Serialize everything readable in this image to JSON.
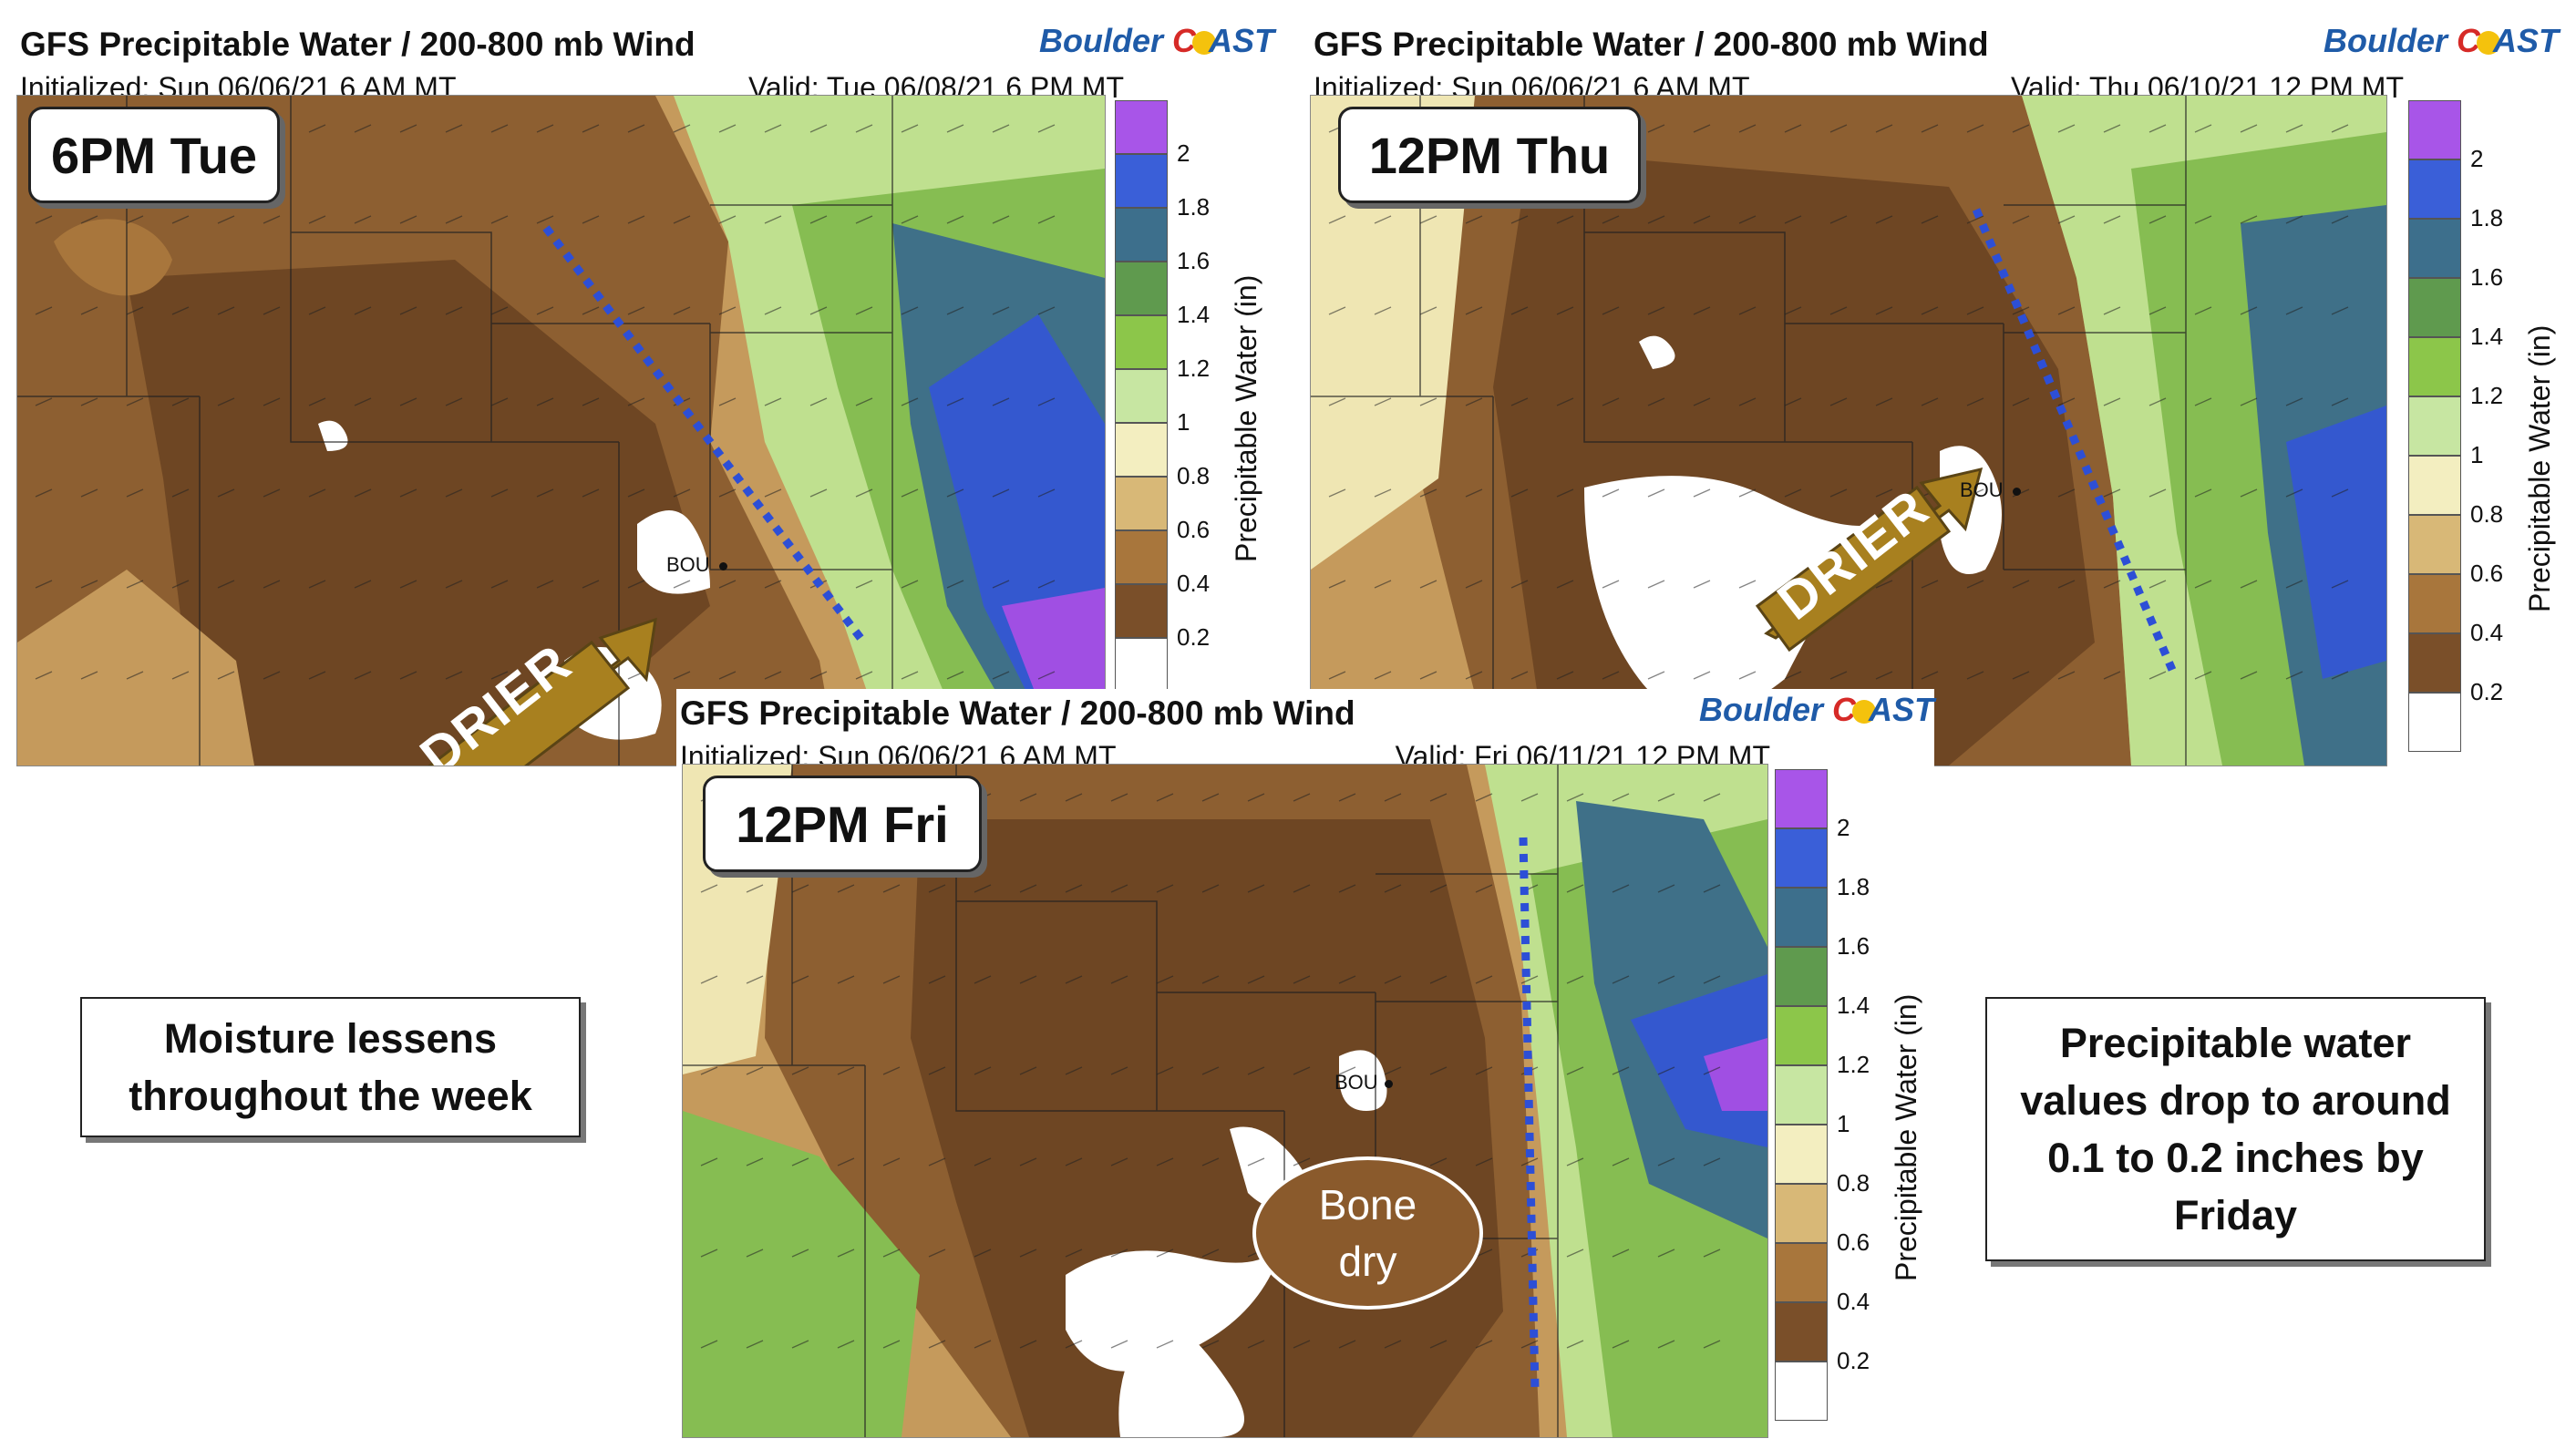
{
  "panels": {
    "tue": {
      "title": "GFS Precipitable Water / 200-800 mb Wind",
      "initialized": "Initialized: Sun 06/06/21 6 AM MT",
      "valid": "Valid: Tue 06/08/21 6 PM MT",
      "time_label": "6PM Tue",
      "station": "BOU",
      "arrow_label": "DRIER"
    },
    "thu": {
      "title": "GFS Precipitable Water / 200-800 mb Wind",
      "initialized": "Initialized: Sun 06/06/21 6 AM MT",
      "valid": "Valid: Thu 06/10/21 12 PM MT",
      "time_label": "12PM Thu",
      "station": "BOU",
      "arrow_label": "DRIER"
    },
    "fri": {
      "title": "GFS Precipitable Water / 200-800 mb Wind",
      "initialized": "Initialized: Sun 06/06/21 6 AM MT",
      "valid": "Valid: Fri 06/11/21 12 PM MT",
      "time_label": "12PM Fri",
      "station": "BOU",
      "bone_dry_line1": "Bone",
      "bone_dry_line2": "dry"
    }
  },
  "logo": {
    "part1": "Boulder",
    "part2": "AST"
  },
  "colorbar": {
    "label": "Precipitable Water (in)",
    "ticks": [
      "2",
      "1.8",
      "1.6",
      "1.4",
      "1.2",
      "1",
      "0.8",
      "0.6",
      "0.4",
      "0.2"
    ],
    "colors": [
      "#a855e8",
      "#3a5fd8",
      "#3d6f8c",
      "#5f9a4e",
      "#8cc64a",
      "#c7e6a2",
      "#f3eec0",
      "#d8b877",
      "#a8763c",
      "#7a4f29",
      "#ffffff"
    ]
  },
  "notes": {
    "left_line1": "Moisture lessens",
    "left_line2": "throughout the week",
    "right_line1": "Precipitable water",
    "right_line2": "values drop to around",
    "right_line3": "0.1 to 0.2 inches by",
    "right_line4": "Friday"
  },
  "palette": {
    "dark_brown": "#6e4623",
    "brown": "#8d5f31",
    "tan": "#c59a5c",
    "cream": "#efe6b3",
    "light_green": "#bfe08f",
    "green": "#86bd52",
    "teal": "#3f7088",
    "blue": "#3458cf",
    "purple": "#a04fe3",
    "dry_line": "#2d4fd6",
    "arrow_gold": "#a8801f"
  }
}
